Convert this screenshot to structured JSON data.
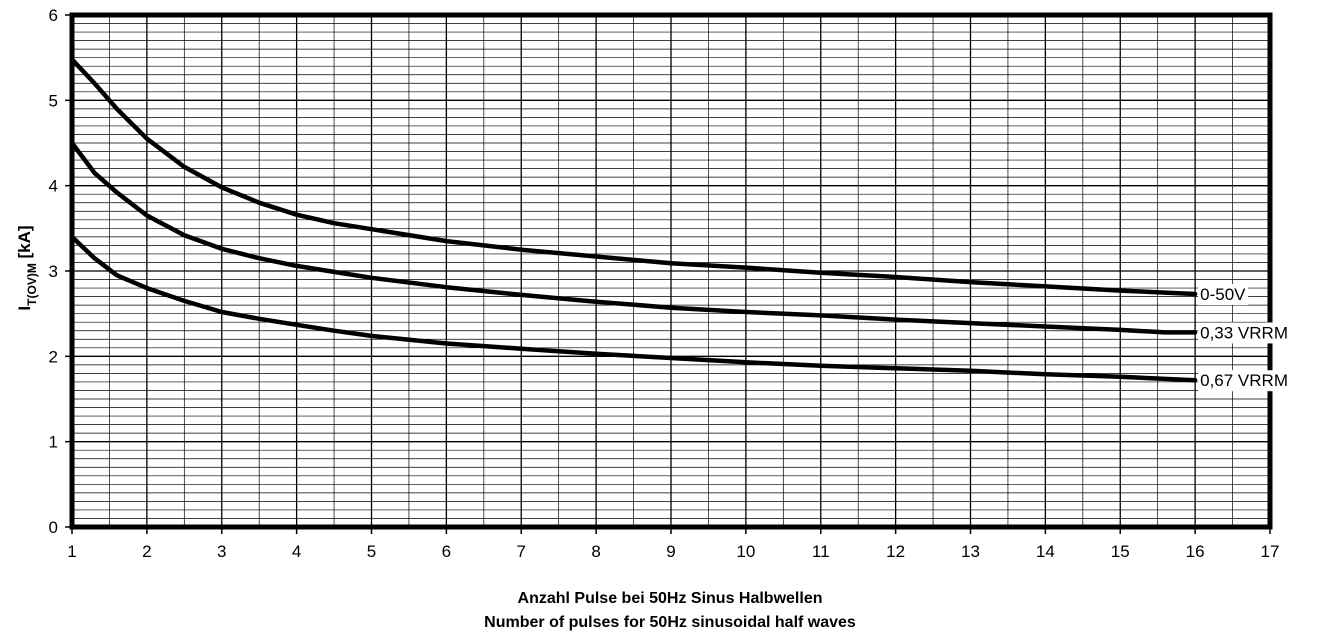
{
  "chart_data": {
    "type": "line",
    "title": "",
    "xlabel": [
      "Anzahl Pulse bei 50Hz Sinus Halbwellen",
      "Number of pulses for 50Hz sinusoidal half waves"
    ],
    "ylabel": {
      "main": "I",
      "sub": "T(OV)M",
      "unit": " [kA]"
    },
    "xlim": [
      1,
      17
    ],
    "ylim": [
      0,
      6
    ],
    "x_ticks": [
      1,
      2,
      3,
      4,
      5,
      6,
      7,
      8,
      9,
      10,
      11,
      12,
      13,
      14,
      15,
      16,
      17
    ],
    "y_ticks": [
      0,
      1,
      2,
      3,
      4,
      5,
      6
    ],
    "x_minor_step": 0.5,
    "y_minor_step": 0.1,
    "grid": true,
    "legend": "labels at right end of each line",
    "colors": {
      "line": "#000000",
      "grid": "#000000",
      "background": "#ffffff"
    },
    "series": [
      {
        "name": "0-50V",
        "x": [
          1,
          1.3,
          1.6,
          2,
          2.5,
          3,
          3.5,
          4,
          4.5,
          5,
          6,
          7,
          8,
          9,
          10,
          11,
          12,
          13,
          14,
          15,
          16
        ],
        "y": [
          5.48,
          5.2,
          4.9,
          4.55,
          4.22,
          3.98,
          3.8,
          3.66,
          3.56,
          3.49,
          3.35,
          3.25,
          3.17,
          3.09,
          3.04,
          2.98,
          2.93,
          2.87,
          2.82,
          2.77,
          2.73
        ]
      },
      {
        "name": "0,33 VRRM",
        "x": [
          1,
          1.3,
          1.6,
          2,
          2.5,
          3,
          3.5,
          4,
          4.5,
          5,
          6,
          7,
          8,
          9,
          10,
          11,
          12,
          13,
          14,
          15,
          15.6,
          16
        ],
        "y": [
          4.5,
          4.15,
          3.92,
          3.65,
          3.42,
          3.26,
          3.15,
          3.06,
          2.99,
          2.92,
          2.81,
          2.72,
          2.64,
          2.57,
          2.52,
          2.48,
          2.43,
          2.39,
          2.35,
          2.31,
          2.28,
          2.28
        ]
      },
      {
        "name": "0,67 VRRM",
        "x": [
          1,
          1.3,
          1.6,
          2,
          2.5,
          3,
          3.5,
          4,
          4.5,
          5,
          6,
          7,
          8,
          9,
          10,
          11,
          12,
          13,
          14,
          15,
          16
        ],
        "y": [
          3.4,
          3.15,
          2.95,
          2.8,
          2.65,
          2.52,
          2.44,
          2.37,
          2.3,
          2.24,
          2.15,
          2.09,
          2.03,
          1.98,
          1.93,
          1.89,
          1.86,
          1.83,
          1.79,
          1.76,
          1.72
        ]
      }
    ]
  }
}
